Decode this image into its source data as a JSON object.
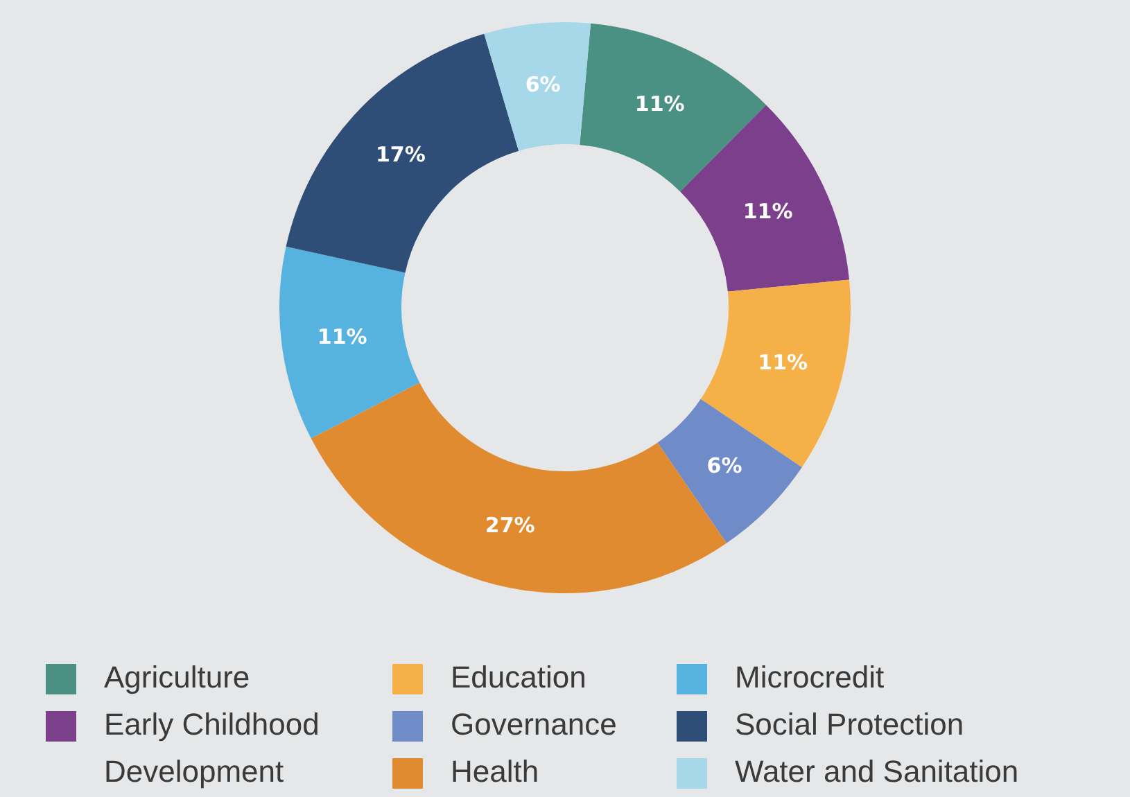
{
  "chart_data": {
    "type": "donut",
    "categories": [
      "Agriculture",
      "Early Childhood Development",
      "Education",
      "Governance",
      "Health",
      "Microcredit",
      "Social Protection",
      "Water and Sanitation"
    ],
    "values": [
      11,
      11,
      11,
      6,
      27,
      11,
      17,
      6
    ],
    "colors": [
      "#4a9183",
      "#7b3f8c",
      "#f5b048",
      "#6f8cc9",
      "#e08b30",
      "#56b2df",
      "#2e4d77",
      "#a6d8ea"
    ],
    "value_labels": [
      "11%",
      "11%",
      "11%",
      "6%",
      "27%",
      "11%",
      "17%",
      "6%"
    ],
    "legend": "bottom"
  }
}
